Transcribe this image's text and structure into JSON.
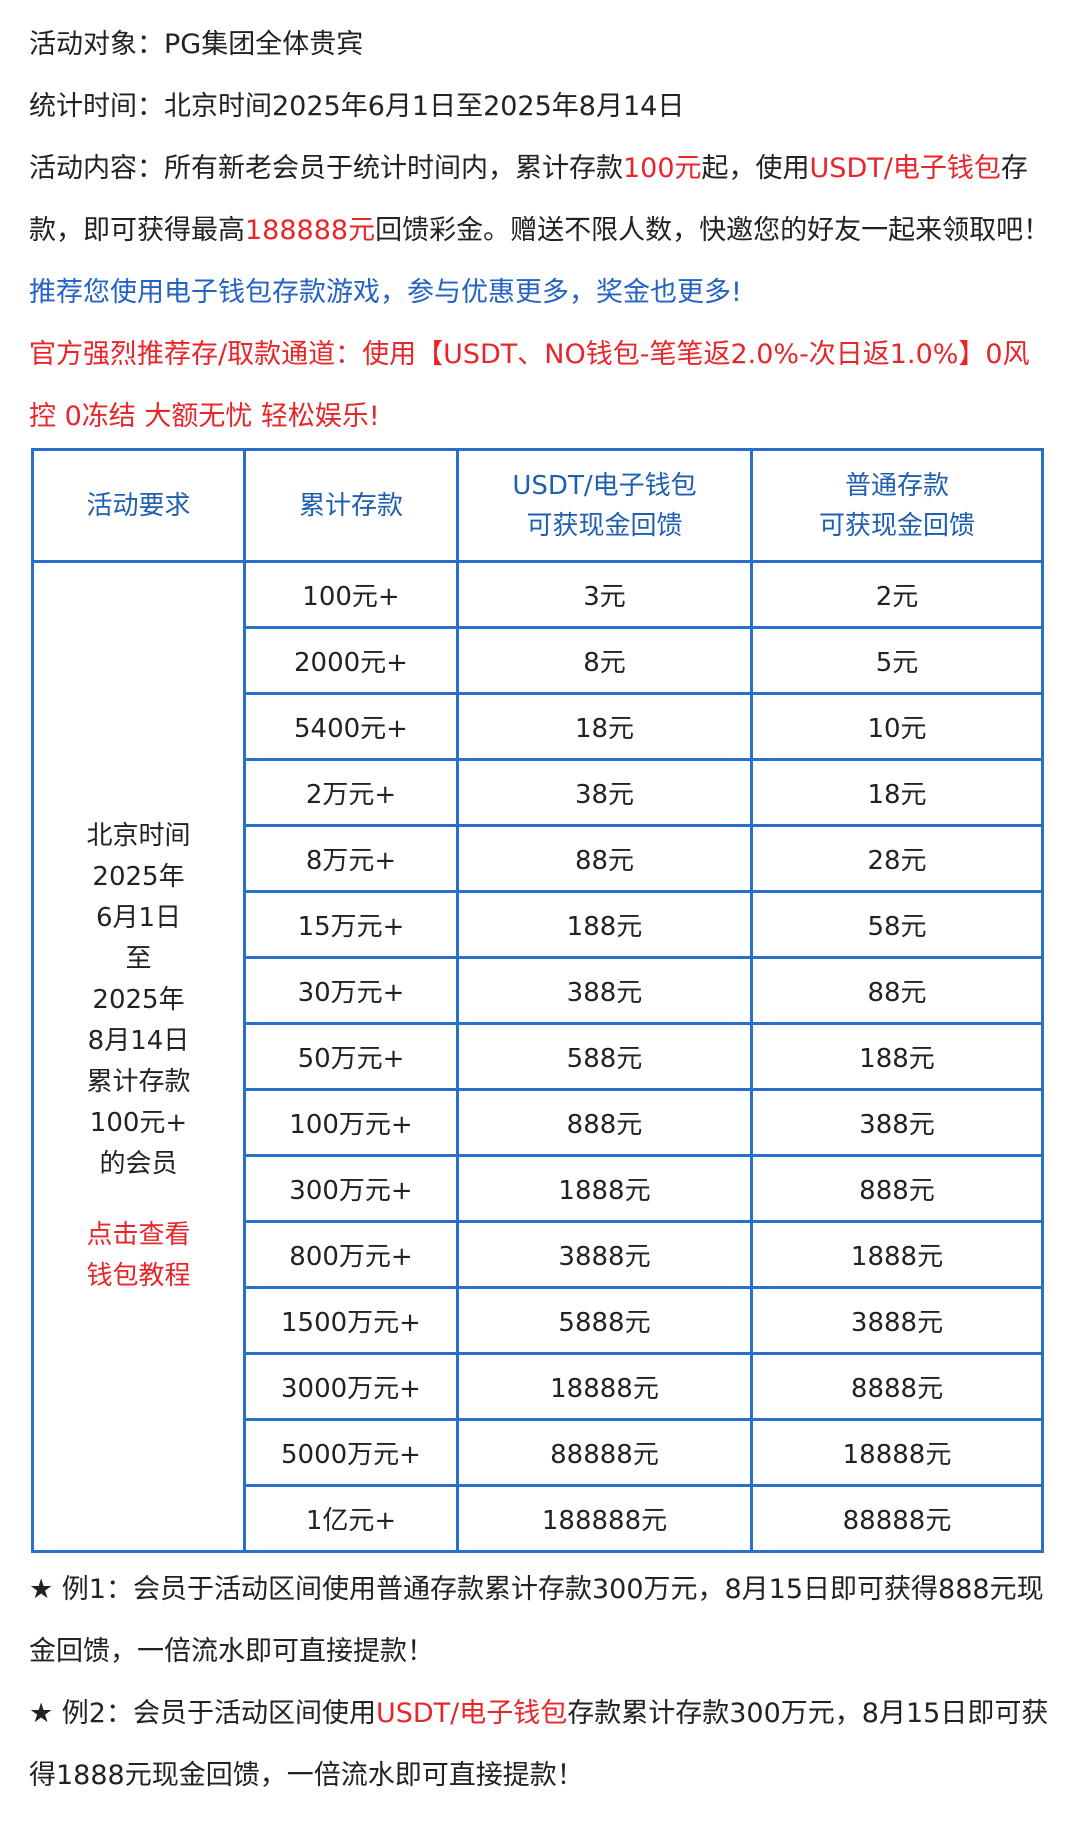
{
  "intro": [
    [
      {
        "text": "活动对象：PG集团全体贵宾"
      }
    ],
    [
      {
        "text": "统计时间：北京时间2025年6月1日至2025年8月14日"
      }
    ],
    [
      {
        "text": "活动内容：所有新老会员于统计时间内，累计存款"
      },
      {
        "text": "100元",
        "color": "#e8262a"
      },
      {
        "text": "起，使用"
      },
      {
        "text": "USDT/电子钱包",
        "color": "#e8262a"
      },
      {
        "text": "存款，即可获得最高"
      },
      {
        "text": "188888元",
        "color": "#e8262a"
      },
      {
        "text": "回馈彩金。赠送不限人数，快邀您的好友一起来领取吧！"
      },
      {
        "text": "推荐您使用电子钱包存款游戏，参与优惠更多，奖金也更多!",
        "color": "#2463c4"
      }
    ],
    [
      {
        "text": "官方强烈推荐存/取款通道：使用【USDT、NO钱包-笔笔返2.0%-次日返1.0%】0风控 0冻结 大额无忧 轻松娱乐!",
        "color": "#e8262a"
      }
    ]
  ],
  "table": {
    "header": [
      [
        "活动要求"
      ],
      [
        "累计存款"
      ],
      [
        "USDT/电子钱包",
        "可获现金回馈"
      ],
      [
        "普通存款",
        "可获现金回馈"
      ]
    ],
    "merged_cell": {
      "lines": [
        "北京时间",
        "2025年",
        "6月1日",
        "至",
        "2025年",
        "8月14日",
        "累计存款",
        "100元+",
        "的会员"
      ],
      "link_lines": [
        "点击查看",
        "钱包教程"
      ]
    },
    "rows": [
      [
        "100元+",
        "3元",
        "2元"
      ],
      [
        "2000元+",
        "8元",
        "5元"
      ],
      [
        "5400元+",
        "18元",
        "10元"
      ],
      [
        "2万元+",
        "38元",
        "18元"
      ],
      [
        "8万元+",
        "88元",
        "28元"
      ],
      [
        "15万元+",
        "188元",
        "58元"
      ],
      [
        "30万元+",
        "388元",
        "88元"
      ],
      [
        "50万元+",
        "588元",
        "188元"
      ],
      [
        "100万元+",
        "888元",
        "388元"
      ],
      [
        "300万元+",
        "1888元",
        "888元"
      ],
      [
        "800万元+",
        "3888元",
        "1888元"
      ],
      [
        "1500万元+",
        "5888元",
        "3888元"
      ],
      [
        "3000万元+",
        "18888元",
        "8888元"
      ],
      [
        "5000万元+",
        "88888元",
        "18888元"
      ],
      [
        "1亿元+",
        "188888元",
        "88888元"
      ]
    ]
  },
  "notes": [
    [
      {
        "text": "★ 例1：会员于活动区间使用普通存款累计存款300万元，8月15日即可获得888元现金回馈，一倍流水即可直接提款！"
      }
    ],
    [
      {
        "text": "★ 例2：会员于活动区间使用"
      },
      {
        "text": "USDT/电子钱包",
        "color": "#e8262a"
      },
      {
        "text": "存款累计存款300万元，8月15日即可获得1888元现金回馈，一倍流水即可直接提款！"
      }
    ]
  ]
}
